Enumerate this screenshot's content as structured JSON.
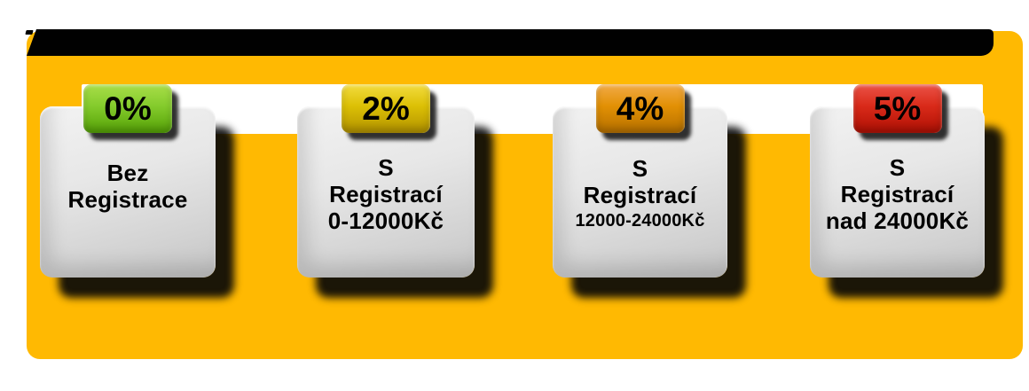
{
  "colors": {
    "panel_background": "#FFB902",
    "title_bar": "#000000",
    "connector_band": "#FFFFFF",
    "card_surface": "#D9D9D9",
    "badge_green": "#84CB2C",
    "badge_gold": "#DCC005",
    "badge_orange": "#E29004",
    "badge_red": "#D92A19",
    "text": "#000000"
  },
  "cards": [
    {
      "badge": "0%",
      "lines": [
        "Bez",
        "Registrace"
      ]
    },
    {
      "badge": "2%",
      "lines": [
        "S",
        "Registrací",
        "0-12000Kč"
      ]
    },
    {
      "badge": "4%",
      "lines": [
        "S",
        "Registrací",
        "12000-24000Kč"
      ]
    },
    {
      "badge": "5%",
      "lines": [
        "S",
        "Registrací",
        "nad 24000Kč"
      ]
    }
  ]
}
